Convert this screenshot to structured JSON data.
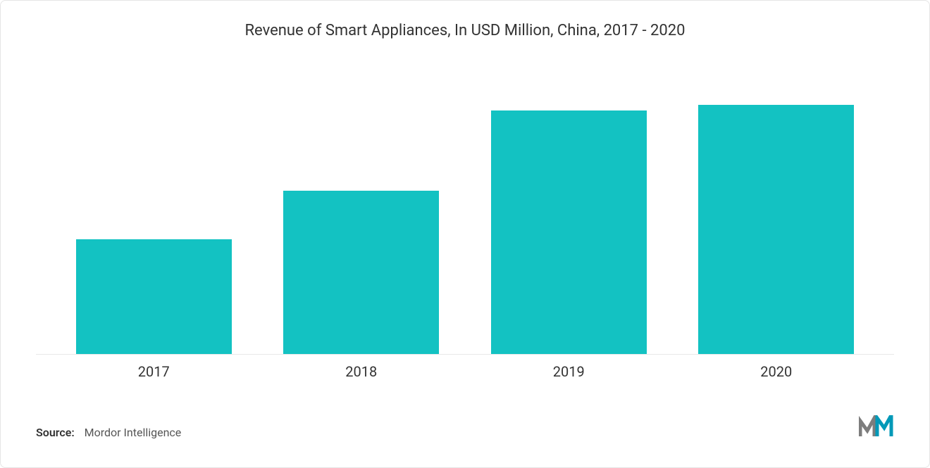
{
  "chart": {
    "type": "bar",
    "title": "Revenue of Smart Appliances, In USD Million, China, 2017 - 2020",
    "title_fontsize": 22,
    "title_color": "#333333",
    "categories": [
      "2017",
      "2018",
      "2019",
      "2020"
    ],
    "values_relative_pct": [
      40,
      57,
      85,
      87
    ],
    "bar_color": "#13c2c2",
    "bar_width_pct": 75,
    "background_color": "#ffffff",
    "baseline_color": "#e8e8e8",
    "xlabel_fontsize": 20,
    "xlabel_color": "#333333"
  },
  "footer": {
    "source_label": "Source:",
    "source_text": "Mordor Intelligence",
    "source_fontsize": 16
  },
  "logo": {
    "name": "mordor-intelligence-logo",
    "primary_color": "#0099b8",
    "secondary_color": "#7d7d7d"
  }
}
